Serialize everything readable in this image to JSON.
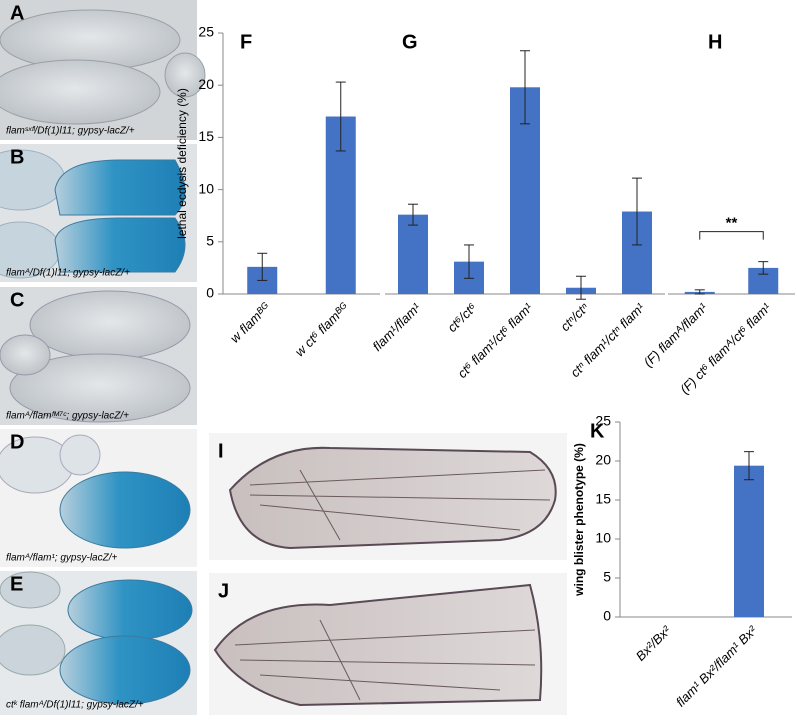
{
  "photos": [
    {
      "label": "A",
      "caption": "flamˢˣᶠˡ/Df(1)l11; gypsy-lacZ/+"
    },
    {
      "label": "B",
      "caption": "flamᴬ/Df(1)l11; gypsy-lacZ/+"
    },
    {
      "label": "C",
      "caption": "flamᴬ/flamᶠᴹ⁷ᶜ; gypsy-lacZ/+"
    },
    {
      "label": "D",
      "caption": "flamᴬ/flam¹; gypsy-lacZ/+"
    },
    {
      "label": "E",
      "caption": "ctᵏ flamᴬ/Df(1)l11; gypsy-lacZ/+"
    }
  ],
  "wing_photos": [
    {
      "label": "I"
    },
    {
      "label": "J"
    }
  ],
  "chart_data": [
    {
      "type": "bar",
      "panel": "F",
      "y_label": "lethal ecdysis deficiency (%)",
      "color": "#4472c4",
      "categories": [
        "w flamᴮᴳ",
        "w ct⁶ flamᴮᴳ"
      ],
      "values": [
        2.6,
        17.0
      ],
      "errors": [
        1.3,
        3.3
      ],
      "ylim": [
        0,
        25
      ],
      "yticks": [
        0,
        5,
        10,
        15,
        20,
        25
      ]
    },
    {
      "type": "bar",
      "panel": "G",
      "color": "#4472c4",
      "categories": [
        "flam¹/flam¹",
        "ct⁶/ct⁶",
        "ct⁶ flam¹/ct⁶ flam¹",
        "ctⁿ/ctⁿ",
        "ctⁿ flam¹/ctⁿ flam¹"
      ],
      "values": [
        7.6,
        3.1,
        19.8,
        0.6,
        7.9
      ],
      "errors": [
        1.0,
        1.6,
        3.5,
        1.1,
        3.2
      ],
      "ylim": [
        0,
        25
      ]
    },
    {
      "type": "bar",
      "panel": "H",
      "color": "#4472c4",
      "annotation": "**",
      "categories": [
        "(F)  flamᴬ/flam¹",
        "(F) ct⁶ flamᴬ/ct⁶ flam¹"
      ],
      "values": [
        0.2,
        2.5
      ],
      "errors": [
        0.2,
        0.6
      ],
      "ylim": [
        0,
        25
      ]
    },
    {
      "type": "bar",
      "panel": "K",
      "y_label": "wing blister phenotype (%)",
      "color": "#4472c4",
      "categories": [
        "Bx²/Bx²",
        "flam¹ Bx²/flam¹ Bx²"
      ],
      "values": [
        0,
        19.4
      ],
      "errors": [
        0,
        1.8
      ],
      "ylim": [
        0,
        25
      ],
      "yticks": [
        0,
        5,
        10,
        15,
        20,
        25
      ]
    }
  ]
}
